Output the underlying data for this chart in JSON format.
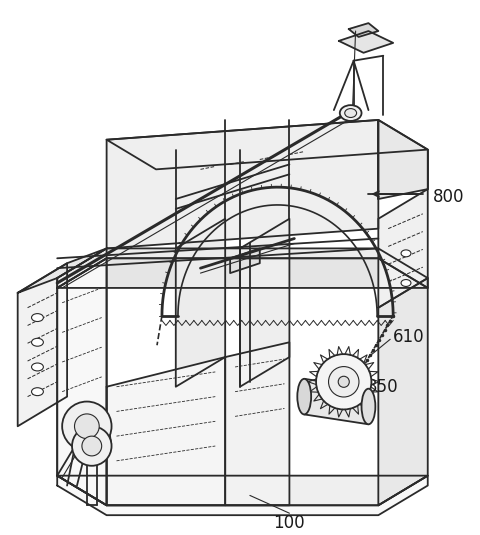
{
  "background_color": "#ffffff",
  "line_color": "#2a2a2a",
  "label_color": "#1a1a1a",
  "figsize": [
    4.81,
    5.35
  ],
  "dpi": 100,
  "label_fontsize": 12
}
